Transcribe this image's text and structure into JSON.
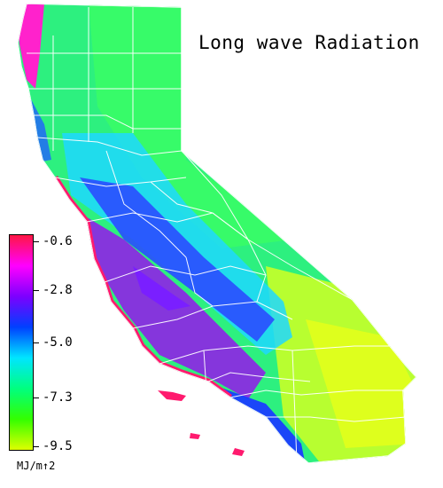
{
  "map": {
    "title": "Long wave Radiation",
    "region": "California counties",
    "legend": {
      "unit": "MJ/m↑2",
      "ticks": [
        "-0.6",
        "-2.8",
        "-5.0",
        "-7.3",
        "-9.5"
      ],
      "gradient_colors": [
        "#ff1744",
        "#ff00ff",
        "#7c00ff",
        "#0040ff",
        "#00e5ff",
        "#00ff7f",
        "#33ff00",
        "#ddff00"
      ]
    },
    "colors": {
      "coast_min": "#ff1a6e",
      "coastal_purple": "#8a2be2",
      "valley_blue": "#2a4dff",
      "cyan": "#00e0ff",
      "interior_green": "#28f07a",
      "desert_yellow": "#d8ff1a",
      "county_lines": "#ffffff"
    }
  }
}
